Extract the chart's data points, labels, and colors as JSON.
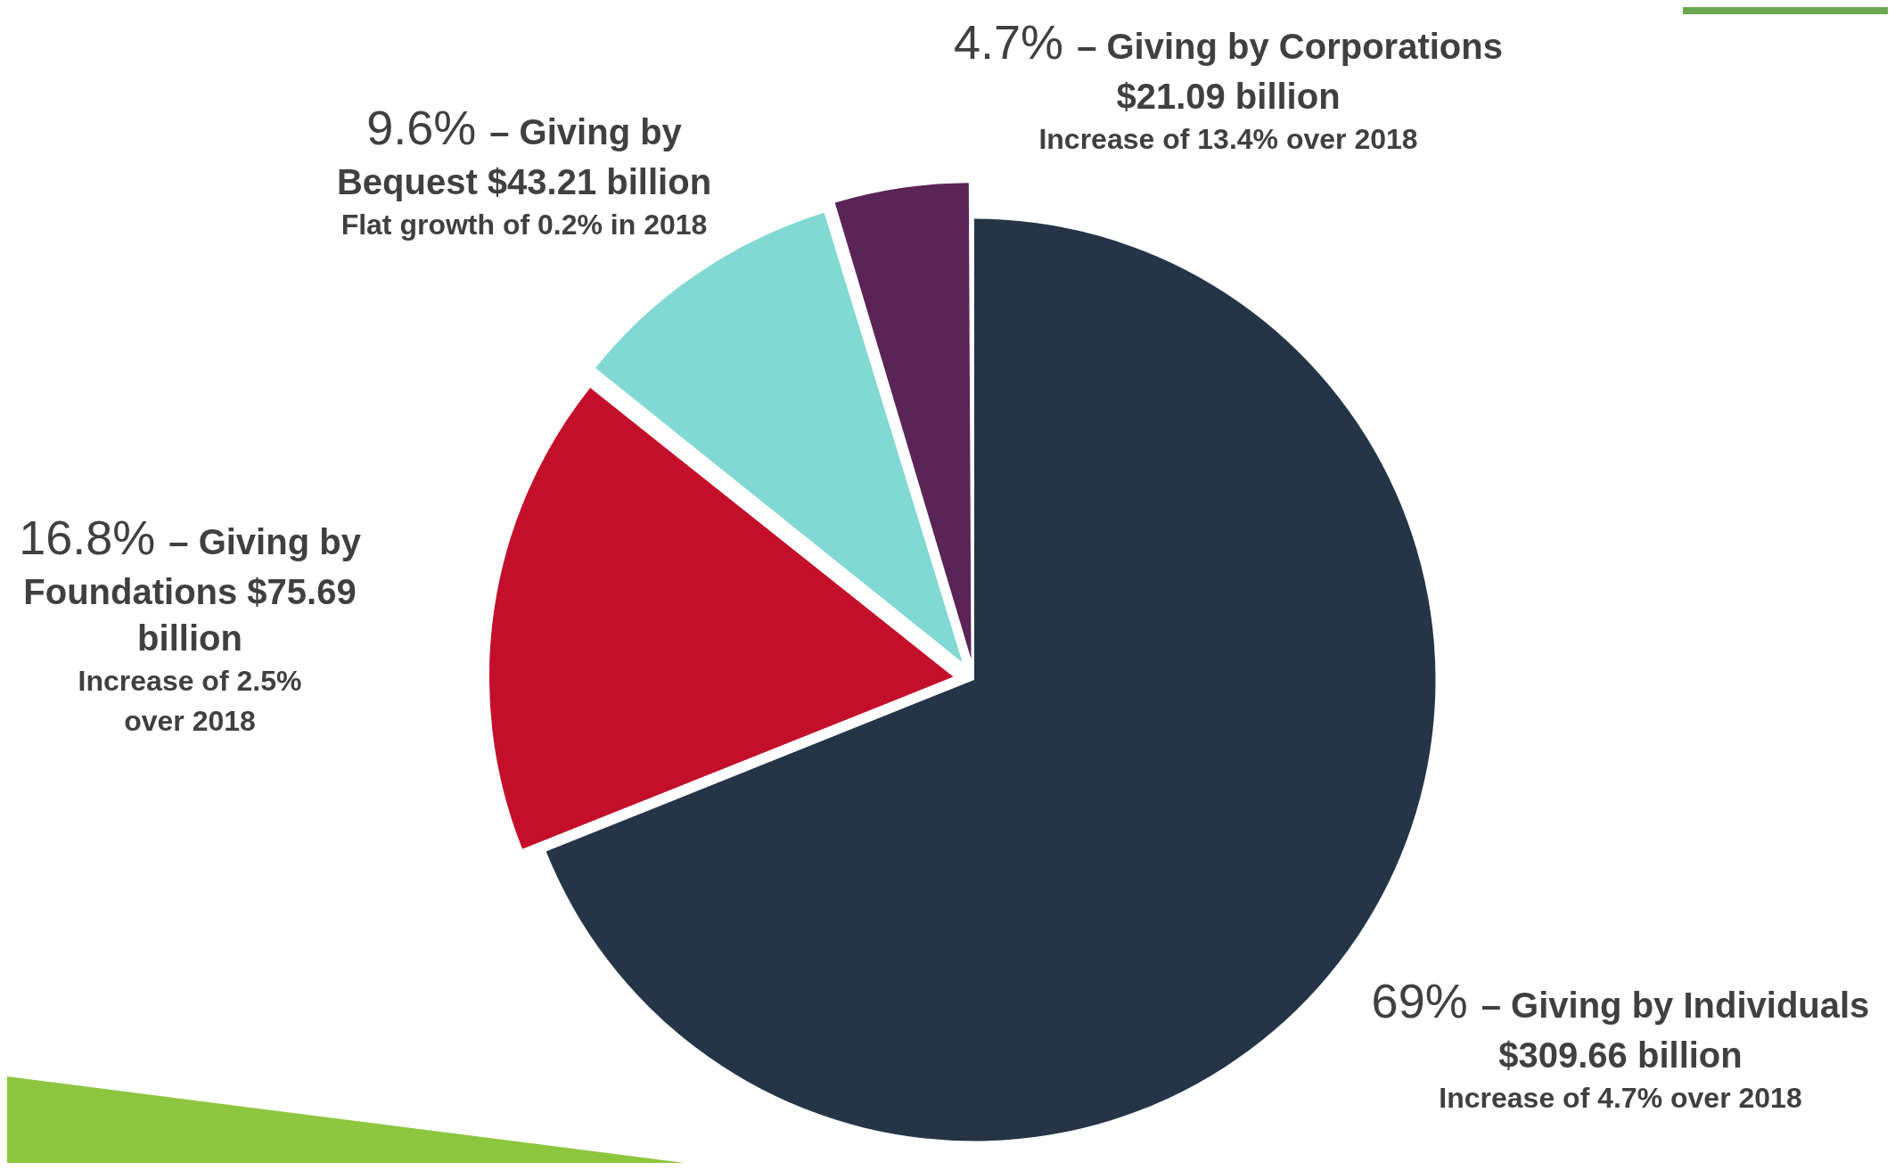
{
  "chart_data": {
    "type": "pie",
    "categories": [
      "– Giving by Individuals $309.66 billion",
      "– Giving by Foundations $75.69 billion",
      "– Giving by Bequest $43.21 billion",
      "– Giving by Corporations $21.09 billion"
    ],
    "values": [
      69,
      16.8,
      9.6,
      4.7
    ],
    "value_labels": [
      "69%",
      "16.8%",
      "9.6%",
      "4.7%"
    ],
    "colors": [
      "#253447",
      "#c40f2b",
      "#82d8d3",
      "#5a2457"
    ],
    "annotations": [
      "Increase of 4.7% over 2018",
      "Increase of 2.5% over 2018",
      "Flat growth of 0.2% in 2018",
      "Increase of 13.4% over 2018"
    ],
    "legend": false
  }
}
